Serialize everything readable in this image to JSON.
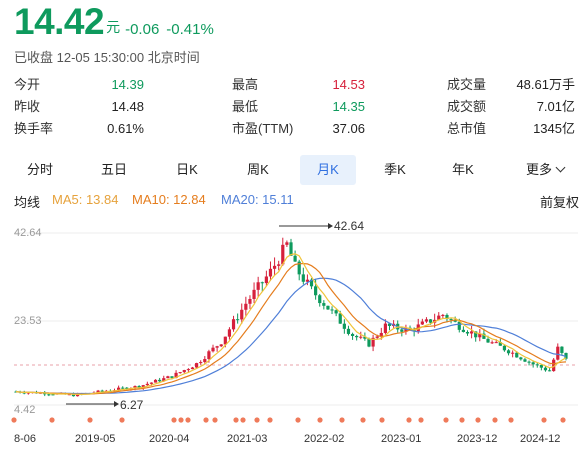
{
  "quote": {
    "price": "14.42",
    "unit": "元",
    "change": "-0.06",
    "change_pct": "-0.41%",
    "status": "已收盘 12-05 15:30:00 北京时间"
  },
  "stats": [
    {
      "label": "今开",
      "value": "14.39",
      "tone": "green"
    },
    {
      "label": "最高",
      "value": "14.53",
      "tone": "red"
    },
    {
      "label": "成交量",
      "value": "48.61万手",
      "tone": "plain"
    },
    {
      "label": "昨收",
      "value": "14.48",
      "tone": "plain"
    },
    {
      "label": "最低",
      "value": "14.35",
      "tone": "green"
    },
    {
      "label": "成交额",
      "value": "7.01亿",
      "tone": "plain"
    },
    {
      "label": "换手率",
      "value": "0.61%",
      "tone": "plain"
    },
    {
      "label": "市盈(TTM)",
      "value": "37.06",
      "tone": "plain"
    },
    {
      "label": "总市值",
      "value": "1345亿",
      "tone": "plain"
    }
  ],
  "tabs": [
    {
      "label": "分时"
    },
    {
      "label": "五日"
    },
    {
      "label": "日K"
    },
    {
      "label": "周K"
    },
    {
      "label": "月K",
      "active": true
    },
    {
      "label": "季K"
    },
    {
      "label": "年K"
    },
    {
      "label": "更多"
    }
  ],
  "ma": {
    "title": "均线",
    "ma5": "MA5: 13.84",
    "ma10": "MA10: 12.84",
    "ma20": "MA20: 15.11",
    "adjust": "前复权"
  },
  "colors": {
    "up": "#d6203b",
    "down": "#0e9a5d",
    "ma5": "#e6a23c",
    "ma10": "#e57d1e",
    "ma20": "#4f7fd8",
    "accent": "#2f6fe0"
  },
  "chart_data": {
    "type": "candlestick",
    "period": "monthly",
    "ylabels": [
      "42.64",
      "23.53",
      "4.42"
    ],
    "x_ticks": [
      "8-06",
      "2019-05",
      "2020-04",
      "2021-03",
      "2022-02",
      "2023-01",
      "2023-12",
      "2024-12"
    ],
    "annotations": {
      "high": "42.64",
      "low": "6.27"
    },
    "prev_close_line": 14.48
  }
}
